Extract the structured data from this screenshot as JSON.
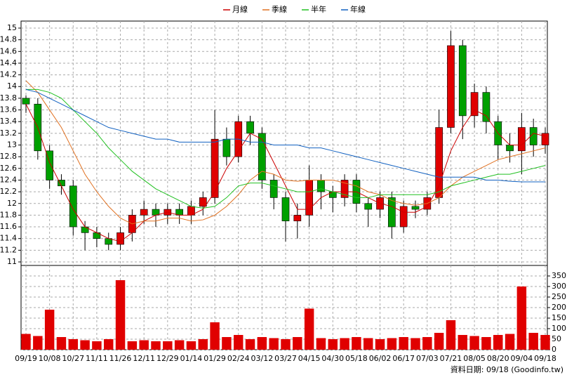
{
  "chart_data": {
    "type": "candlestick",
    "categories": [
      "09/19",
      null,
      "10/08",
      null,
      "10/27",
      null,
      "11/11",
      null,
      "11/26",
      null,
      "12/11",
      null,
      "12/29",
      null,
      "01/14",
      null,
      "01/29",
      null,
      "02/24",
      null,
      "03/12",
      null,
      "03/27",
      null,
      "04/15",
      null,
      "04/30",
      null,
      "05/18",
      null,
      "06/02",
      null,
      "06/17",
      null,
      "07/03",
      null,
      "07/21",
      null,
      "08/05",
      null,
      "08/20",
      null,
      "09/04",
      null,
      "09/18"
    ],
    "open": [
      13.8,
      13.7,
      12.9,
      12.4,
      12.3,
      11.6,
      11.5,
      11.4,
      11.3,
      11.5,
      11.8,
      11.9,
      11.8,
      11.9,
      11.8,
      11.95,
      12.1,
      13.1,
      12.8,
      13.4,
      13.2,
      12.4,
      12.1,
      11.7,
      11.8,
      12.4,
      12.2,
      12.1,
      12.4,
      12.0,
      11.9,
      12.1,
      11.6,
      11.95,
      11.9,
      12.1,
      13.3,
      14.7,
      13.5,
      13.9,
      13.4,
      13.0,
      12.9,
      13.3,
      13.0
    ],
    "high": [
      13.85,
      13.8,
      13.0,
      12.5,
      12.4,
      11.7,
      11.6,
      11.5,
      11.6,
      11.9,
      12.05,
      12.0,
      12.0,
      12.0,
      12.05,
      12.2,
      13.6,
      13.3,
      13.5,
      13.5,
      13.3,
      12.5,
      12.2,
      12.0,
      12.65,
      12.5,
      12.3,
      12.5,
      12.5,
      12.1,
      12.2,
      12.2,
      12.05,
      12.05,
      12.2,
      13.6,
      14.95,
      14.8,
      14.05,
      14.0,
      13.5,
      13.2,
      13.55,
      13.45,
      13.3
    ],
    "low": [
      13.55,
      12.75,
      12.25,
      12.15,
      11.45,
      11.2,
      11.25,
      11.2,
      11.2,
      11.35,
      11.65,
      11.6,
      11.65,
      11.65,
      11.65,
      11.8,
      12.0,
      12.65,
      12.7,
      13.0,
      12.25,
      11.9,
      11.35,
      11.4,
      11.6,
      11.9,
      11.85,
      11.95,
      11.85,
      11.6,
      11.75,
      11.4,
      11.5,
      11.75,
      11.8,
      12.0,
      13.2,
      13.1,
      13.3,
      13.2,
      12.75,
      12.7,
      12.5,
      12.8,
      12.85
    ],
    "close": [
      13.7,
      12.9,
      12.4,
      12.3,
      11.6,
      11.5,
      11.4,
      11.3,
      11.5,
      11.8,
      11.9,
      11.8,
      11.9,
      11.8,
      11.95,
      12.1,
      13.1,
      12.8,
      13.4,
      13.2,
      12.4,
      12.1,
      11.7,
      11.8,
      12.4,
      12.2,
      12.1,
      12.4,
      12.0,
      11.9,
      12.1,
      11.6,
      11.95,
      11.9,
      12.1,
      13.3,
      14.7,
      13.5,
      13.9,
      13.4,
      13.0,
      12.9,
      13.3,
      13.0,
      13.2
    ],
    "up_color": "#e00000",
    "down_color": "#00a000",
    "series": [
      {
        "name": "月線",
        "color": "#cc0000",
        "values": [
          13.7,
          13.3,
          12.7,
          12.3,
          11.9,
          11.6,
          11.5,
          11.4,
          11.35,
          11.5,
          11.7,
          11.8,
          11.85,
          11.8,
          11.8,
          11.9,
          12.2,
          12.6,
          12.9,
          13.2,
          13.1,
          12.7,
          12.3,
          11.9,
          11.9,
          12.1,
          12.2,
          12.2,
          12.2,
          12.1,
          12.0,
          11.95,
          11.85,
          11.85,
          11.95,
          12.3,
          12.9,
          13.3,
          13.6,
          13.5,
          13.2,
          13.0,
          13.0,
          13.2,
          13.15
        ]
      },
      {
        "name": "季線",
        "color": "#e07020",
        "values": [
          14.1,
          13.9,
          13.6,
          13.3,
          12.9,
          12.5,
          12.2,
          11.95,
          11.75,
          11.65,
          11.7,
          11.7,
          11.75,
          11.75,
          11.7,
          11.72,
          11.8,
          11.95,
          12.15,
          12.4,
          12.55,
          12.5,
          12.4,
          12.38,
          12.4,
          12.4,
          12.4,
          12.35,
          12.3,
          12.2,
          12.15,
          12.05,
          12.0,
          11.97,
          12.0,
          12.1,
          12.3,
          12.45,
          12.55,
          12.65,
          12.75,
          12.8,
          12.85,
          12.9,
          12.95
        ]
      },
      {
        "name": "半年",
        "color": "#20c020",
        "values": [
          13.95,
          13.95,
          13.9,
          13.8,
          13.6,
          13.4,
          13.2,
          12.95,
          12.75,
          12.55,
          12.4,
          12.25,
          12.15,
          12.05,
          11.95,
          11.92,
          11.95,
          12.1,
          12.3,
          12.35,
          12.35,
          12.3,
          12.25,
          12.2,
          12.2,
          12.25,
          12.2,
          12.15,
          12.1,
          12.1,
          12.15,
          12.15,
          12.15,
          12.15,
          12.15,
          12.2,
          12.3,
          12.35,
          12.4,
          12.45,
          12.5,
          12.5,
          12.55,
          12.6,
          12.65
        ]
      },
      {
        "name": "年線",
        "color": "#1060c0",
        "values": [
          13.95,
          13.9,
          13.8,
          13.7,
          13.6,
          13.5,
          13.4,
          13.3,
          13.25,
          13.2,
          13.15,
          13.1,
          13.1,
          13.05,
          13.05,
          13.05,
          13.05,
          13.1,
          13.1,
          13.05,
          13.05,
          13.0,
          13.0,
          13.0,
          12.95,
          12.95,
          12.9,
          12.85,
          12.8,
          12.75,
          12.7,
          12.65,
          12.6,
          12.55,
          12.5,
          12.45,
          12.45,
          12.45,
          12.45,
          12.4,
          12.4,
          12.38,
          12.37,
          12.37,
          12.37
        ]
      }
    ],
    "ylim": [
      10.94,
      15.12
    ],
    "yticks": [
      11,
      11.2,
      11.4,
      11.6,
      11.8,
      12,
      12.2,
      12.4,
      12.6,
      12.8,
      13,
      13.2,
      13.4,
      13.6,
      13.8,
      14,
      14.2,
      14.4,
      14.6,
      14.8,
      15
    ],
    "grid": true,
    "volume": {
      "color": "#e00000",
      "values": [
        75,
        65,
        190,
        60,
        50,
        45,
        40,
        50,
        330,
        40,
        45,
        40,
        40,
        45,
        40,
        50,
        130,
        60,
        70,
        50,
        60,
        55,
        50,
        60,
        195,
        55,
        50,
        55,
        60,
        55,
        50,
        55,
        60,
        55,
        60,
        80,
        140,
        70,
        65,
        60,
        70,
        75,
        300,
        80,
        70
      ],
      "ylim": [
        0,
        400
      ],
      "yticks": [
        0,
        50,
        100,
        150,
        200,
        250,
        300,
        350
      ]
    },
    "footer": "資料日期: 09/18 (Goodinfo.tw)"
  }
}
